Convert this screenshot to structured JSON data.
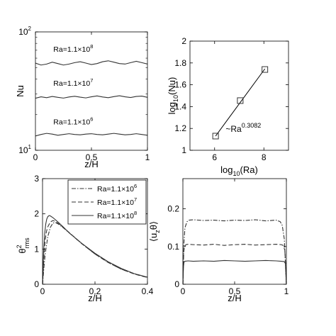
{
  "figure": {
    "background": "#ffffff",
    "line_color": "#333333"
  },
  "chart_data": [
    {
      "id": "nu-profiles",
      "type": "line",
      "xlabel": "z/H",
      "ylabel": "Nu",
      "xlim": [
        0,
        1
      ],
      "ylim": [
        10,
        100
      ],
      "yscale": "log",
      "xticks": [
        0,
        0.5,
        1
      ],
      "xtick_labels": [
        "0",
        "0.5",
        "1"
      ],
      "ytick_labels": [
        {
          "value": 10,
          "base": "10",
          "exp": "1"
        },
        {
          "value": 100,
          "base": "10",
          "exp": "2"
        }
      ],
      "annotations": [
        {
          "prefix": "Ra=1.1×10",
          "exp": "8",
          "x": 0.16,
          "y": 68
        },
        {
          "prefix": "Ra=1.1×10",
          "exp": "7",
          "x": 0.16,
          "y": 35
        },
        {
          "prefix": "Ra=1.1×10",
          "exp": "6",
          "x": 0.16,
          "y": 16.5
        }
      ],
      "series": [
        {
          "style": "solid",
          "x": [
            0,
            0.05,
            0.1,
            0.15,
            0.2,
            0.25,
            0.3,
            0.35,
            0.4,
            0.45,
            0.5,
            0.55,
            0.6,
            0.65,
            0.7,
            0.75,
            0.8,
            0.85,
            0.9,
            0.95,
            1
          ],
          "y": [
            54.5,
            52.5,
            53.5,
            55.5,
            54,
            52.5,
            53.5,
            55,
            56,
            54.5,
            53,
            54,
            56,
            57,
            55.5,
            54,
            53.5,
            55,
            56.5,
            55,
            53.5
          ]
        },
        {
          "style": "solid",
          "x": [
            0,
            0.05,
            0.1,
            0.15,
            0.2,
            0.25,
            0.3,
            0.35,
            0.4,
            0.45,
            0.5,
            0.55,
            0.6,
            0.65,
            0.7,
            0.75,
            0.8,
            0.85,
            0.9,
            0.95,
            1
          ],
          "y": [
            27.5,
            28.3,
            27.8,
            28.5,
            28.0,
            27.6,
            28.2,
            28.6,
            28.1,
            27.7,
            28.3,
            28.8,
            28.2,
            27.8,
            28.4,
            28.9,
            28.3,
            27.9,
            28.5,
            28.7,
            28.0
          ]
        },
        {
          "style": "solid",
          "x": [
            0,
            0.05,
            0.1,
            0.15,
            0.2,
            0.25,
            0.3,
            0.35,
            0.4,
            0.45,
            0.5,
            0.55,
            0.6,
            0.65,
            0.7,
            0.75,
            0.8,
            0.85,
            0.9,
            0.95,
            1
          ],
          "y": [
            13.2,
            13.6,
            13.9,
            13.7,
            13.4,
            13.6,
            13.8,
            13.6,
            13.5,
            13.7,
            13.8,
            13.6,
            13.5,
            13.7,
            13.9,
            13.7,
            13.5,
            13.6,
            13.8,
            13.6,
            13.4
          ]
        }
      ]
    },
    {
      "id": "nu-scaling",
      "type": "scatter",
      "xlabel_prefix": "log",
      "xlabel_sub": "10",
      "xlabel_suffix": "(Ra)",
      "ylabel_prefix": "log",
      "ylabel_sub": "10",
      "ylabel_suffix": "(Nu)",
      "xlim": [
        5,
        9
      ],
      "ylim": [
        1,
        2
      ],
      "xticks": [
        6,
        8
      ],
      "xtick_labels": [
        "6",
        "8"
      ],
      "yticks": [
        1,
        1.2,
        1.4,
        1.6,
        1.8,
        2
      ],
      "ytick_labels": [
        "1",
        "1.2",
        "1.4",
        "1.6",
        "1.8",
        "2"
      ],
      "points": {
        "x": [
          6.04,
          7.04,
          8.04
        ],
        "y": [
          1.13,
          1.455,
          1.74
        ]
      },
      "fit_line": {
        "x": [
          6.04,
          8.04
        ],
        "y": [
          1.13,
          1.746
        ]
      },
      "annotation": {
        "prefix": "~Ra",
        "exp": "0.3082",
        "x": 6.45,
        "y": 1.17
      }
    },
    {
      "id": "theta-rms",
      "type": "line",
      "xlabel": "z/H",
      "ylabel_base": "θ",
      "ylabel_sup": "2",
      "ylabel_sub": "rms",
      "xlim": [
        0,
        0.4
      ],
      "ylim": [
        0,
        3
      ],
      "xticks": [
        0,
        0.2,
        0.4
      ],
      "xtick_labels": [
        "0",
        "0.2",
        "0.4"
      ],
      "yticks": [
        0,
        1,
        2,
        3
      ],
      "ytick_labels": [
        "0",
        "1",
        "2",
        "3"
      ],
      "legend": {
        "placement": "top-right",
        "entries": [
          {
            "style": "dashdot",
            "prefix": "Ra=1.1×10",
            "exp": "6"
          },
          {
            "style": "dashed",
            "prefix": "Ra=1.1×10",
            "exp": "7"
          },
          {
            "style": "solid",
            "prefix": "Ra=1.1×10",
            "exp": "8"
          }
        ]
      },
      "series": [
        {
          "style": "dashdot",
          "x": [
            0,
            0.005,
            0.01,
            0.02,
            0.03,
            0.04,
            0.05,
            0.06,
            0.08,
            0.1,
            0.15,
            0.2,
            0.25,
            0.3,
            0.35,
            0.4
          ],
          "y": [
            0,
            0.45,
            0.85,
            1.35,
            1.62,
            1.74,
            1.75,
            1.71,
            1.6,
            1.47,
            1.15,
            0.86,
            0.62,
            0.43,
            0.3,
            0.2
          ]
        },
        {
          "style": "dashed",
          "x": [
            0,
            0.005,
            0.01,
            0.015,
            0.02,
            0.03,
            0.04,
            0.05,
            0.07,
            0.1,
            0.15,
            0.2,
            0.25,
            0.3,
            0.35,
            0.4
          ],
          "y": [
            0,
            0.75,
            1.25,
            1.5,
            1.63,
            1.77,
            1.81,
            1.78,
            1.67,
            1.48,
            1.15,
            0.86,
            0.62,
            0.43,
            0.29,
            0.19
          ]
        },
        {
          "style": "solid",
          "x": [
            0,
            0.004,
            0.008,
            0.012,
            0.016,
            0.02,
            0.025,
            0.03,
            0.04,
            0.06,
            0.08,
            0.1,
            0.15,
            0.2,
            0.25,
            0.3,
            0.35,
            0.4
          ],
          "y": [
            0,
            0.9,
            1.42,
            1.7,
            1.85,
            1.92,
            1.95,
            1.94,
            1.89,
            1.76,
            1.62,
            1.47,
            1.16,
            0.88,
            0.64,
            0.45,
            0.3,
            0.2
          ]
        }
      ]
    },
    {
      "id": "convective-flux",
      "type": "line",
      "xlabel": "z/H",
      "ylabel_prefix": "⟨u",
      "ylabel_sub": "z",
      "ylabel_suffix": "θ⟩",
      "xlim": [
        0,
        1
      ],
      "ylim": [
        0,
        0.28
      ],
      "xticks": [
        0,
        0.5,
        1
      ],
      "xtick_labels": [
        "0",
        "0.5",
        "1"
      ],
      "yticks": [
        0,
        0.1,
        0.2
      ],
      "ytick_labels": [
        "0",
        "0.1",
        "0.2"
      ],
      "series": [
        {
          "style": "dashdot",
          "x": [
            0,
            0.01,
            0.02,
            0.04,
            0.06,
            0.1,
            0.2,
            0.3,
            0.4,
            0.5,
            0.6,
            0.7,
            0.8,
            0.9,
            0.94,
            0.96,
            0.98,
            0.99,
            1
          ],
          "y": [
            0,
            0.11,
            0.15,
            0.166,
            0.17,
            0.171,
            0.169,
            0.17,
            0.168,
            0.17,
            0.169,
            0.171,
            0.168,
            0.17,
            0.166,
            0.156,
            0.12,
            0.06,
            0
          ]
        },
        {
          "style": "dashed",
          "x": [
            0,
            0.008,
            0.015,
            0.03,
            0.05,
            0.1,
            0.2,
            0.3,
            0.4,
            0.5,
            0.6,
            0.7,
            0.8,
            0.9,
            0.95,
            0.97,
            0.985,
            0.993,
            1
          ],
          "y": [
            0,
            0.085,
            0.1,
            0.105,
            0.106,
            0.105,
            0.104,
            0.106,
            0.103,
            0.105,
            0.106,
            0.104,
            0.105,
            0.106,
            0.105,
            0.103,
            0.09,
            0.05,
            0
          ]
        },
        {
          "style": "solid",
          "x": [
            0,
            0.005,
            0.01,
            0.02,
            0.05,
            0.1,
            0.2,
            0.3,
            0.4,
            0.5,
            0.6,
            0.7,
            0.8,
            0.9,
            0.95,
            0.98,
            0.99,
            0.995,
            1
          ],
          "y": [
            0,
            0.045,
            0.058,
            0.061,
            0.062,
            0.061,
            0.062,
            0.061,
            0.063,
            0.062,
            0.061,
            0.062,
            0.063,
            0.062,
            0.061,
            0.06,
            0.055,
            0.03,
            0
          ]
        }
      ]
    }
  ]
}
